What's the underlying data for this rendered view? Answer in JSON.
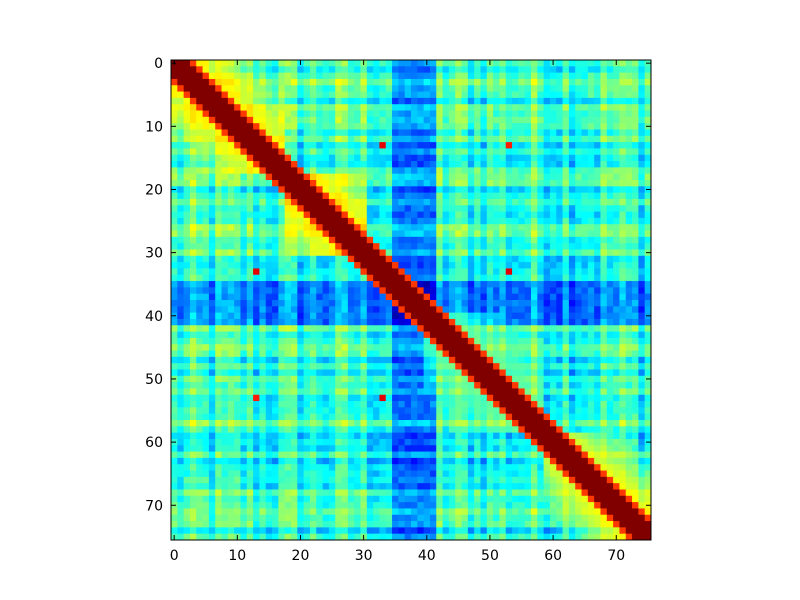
{
  "chart_data": {
    "type": "heatmap",
    "title": "",
    "xlabel": "",
    "ylabel": "",
    "size": 76,
    "xlim": [
      0,
      76
    ],
    "ylim": [
      76,
      0
    ],
    "grid": false,
    "legend": "none",
    "colormap": "jet",
    "x_ticks": [
      "0",
      "10",
      "20",
      "30",
      "40",
      "50",
      "60",
      "70"
    ],
    "y_ticks": [
      "0",
      "10",
      "20",
      "30",
      "40",
      "50",
      "60",
      "70"
    ],
    "diagonal_band_half_width": 2,
    "diagonal_value": 1.0,
    "blocks": [
      {
        "rows": [
          0,
          18
        ],
        "cols": [
          0,
          18
        ],
        "value": 0.7
      },
      {
        "rows": [
          18,
          31
        ],
        "cols": [
          18,
          31
        ],
        "value": 0.72
      },
      {
        "rows": [
          59,
          76
        ],
        "cols": [
          59,
          76
        ],
        "value": 0.68
      },
      {
        "rows": [
          40,
          59
        ],
        "cols": [
          40,
          59
        ],
        "value": 0.5
      }
    ],
    "dark_bands": [
      {
        "index_range": [
          35,
          42
        ],
        "value": 0.08
      }
    ],
    "hotspots": [
      {
        "row": 13,
        "col": 33,
        "value": 0.9
      },
      {
        "row": 33,
        "col": 13,
        "value": 0.9
      },
      {
        "row": 13,
        "col": 53,
        "value": 0.85
      },
      {
        "row": 53,
        "col": 13,
        "value": 0.85
      },
      {
        "row": 33,
        "col": 53,
        "value": 0.9
      },
      {
        "row": 53,
        "col": 33,
        "value": 0.9
      }
    ]
  }
}
